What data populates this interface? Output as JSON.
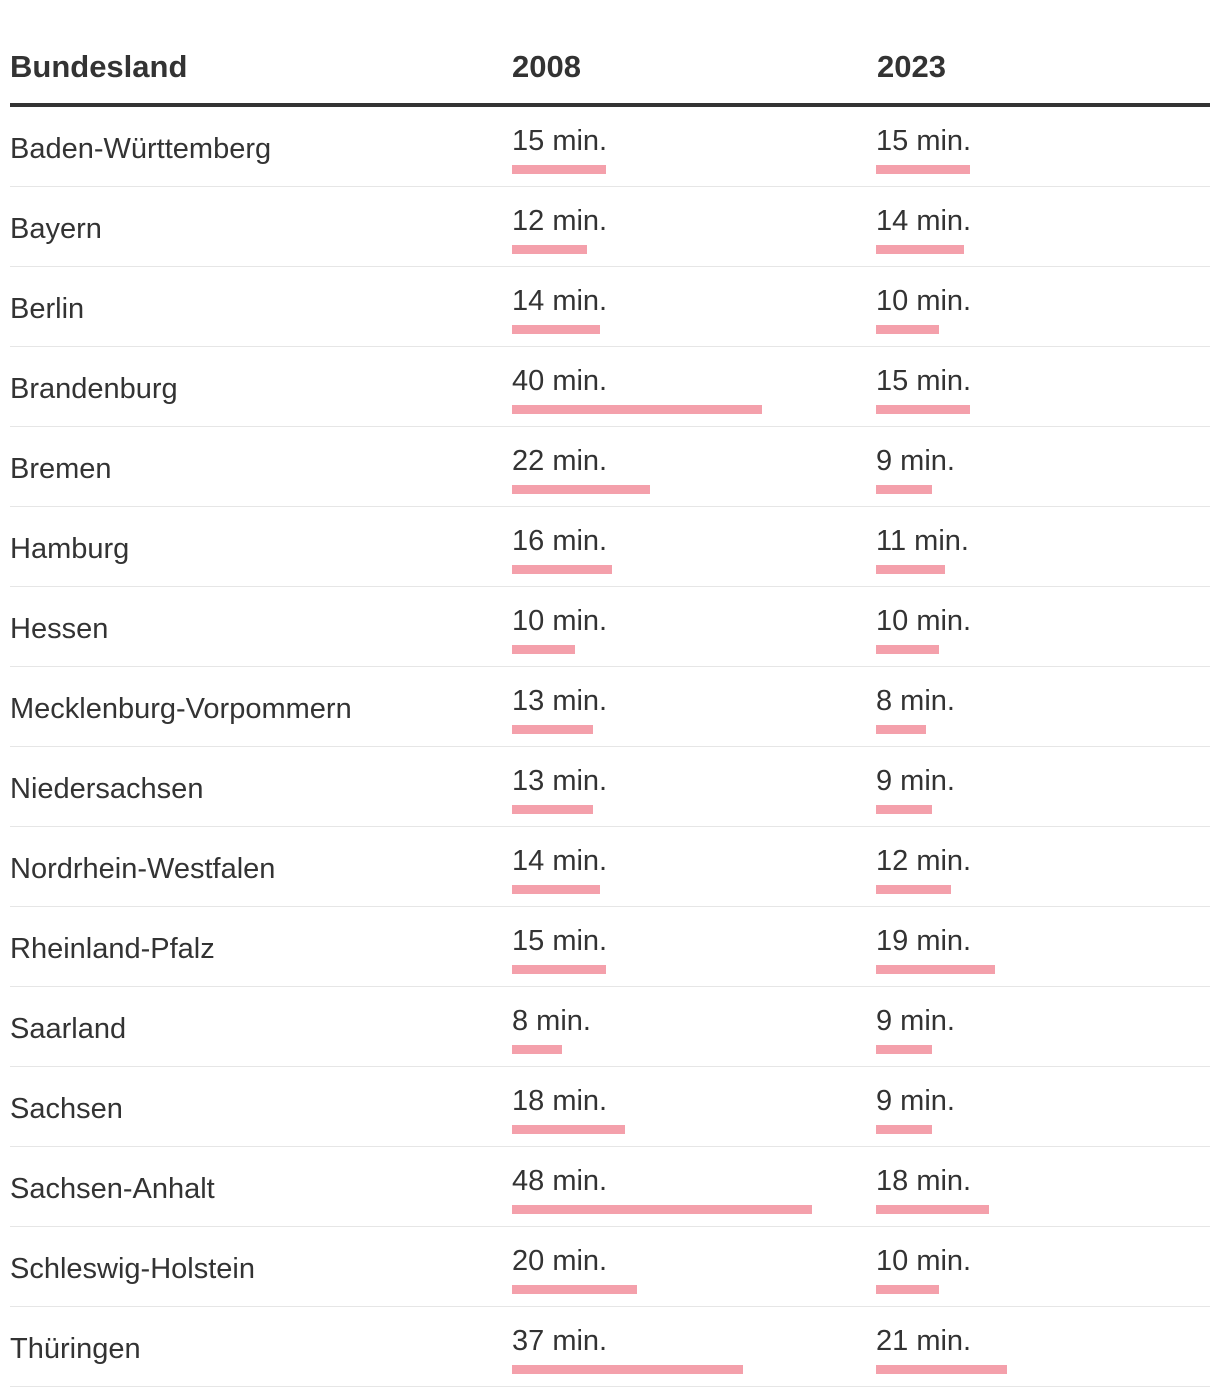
{
  "chart_data": {
    "type": "table",
    "columns": [
      "Bundesland",
      "2008",
      "2023"
    ],
    "unit_suffix": " min.",
    "bar_color": "#f4a0ab",
    "rows": [
      {
        "state": "Baden-Württemberg",
        "y2008": 15,
        "y2023": 15
      },
      {
        "state": "Bayern",
        "y2008": 12,
        "y2023": 14
      },
      {
        "state": "Berlin",
        "y2008": 14,
        "y2023": 10
      },
      {
        "state": "Brandenburg",
        "y2008": 40,
        "y2023": 15
      },
      {
        "state": "Bremen",
        "y2008": 22,
        "y2023": 9
      },
      {
        "state": "Hamburg",
        "y2008": 16,
        "y2023": 11
      },
      {
        "state": "Hessen",
        "y2008": 10,
        "y2023": 10
      },
      {
        "state": "Mecklenburg-Vorpommern",
        "y2008": 13,
        "y2023": 8
      },
      {
        "state": "Niedersachsen",
        "y2008": 13,
        "y2023": 9
      },
      {
        "state": "Nordrhein-Westfalen",
        "y2008": 14,
        "y2023": 12
      },
      {
        "state": "Rheinland-Pfalz",
        "y2008": 15,
        "y2023": 19
      },
      {
        "state": "Saarland",
        "y2008": 8,
        "y2023": 9
      },
      {
        "state": "Sachsen",
        "y2008": 18,
        "y2023": 9
      },
      {
        "state": "Sachsen-Anhalt",
        "y2008": 48,
        "y2023": 18
      },
      {
        "state": "Schleswig-Holstein",
        "y2008": 20,
        "y2023": 10
      },
      {
        "state": "Thüringen",
        "y2008": 37,
        "y2023": 21
      }
    ]
  }
}
